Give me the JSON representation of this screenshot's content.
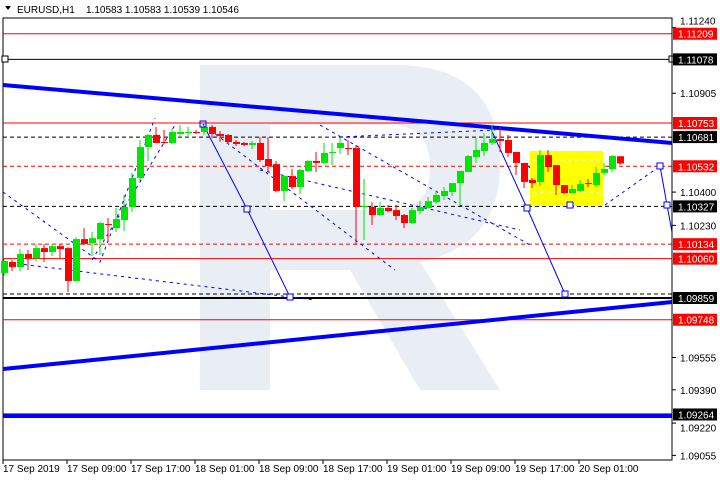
{
  "header": {
    "symbol": "EURUSD,H1",
    "ohlc": "1.10583 1.10583 1.10539 1.10546"
  },
  "chart_data": {
    "type": "candlestick",
    "title": "EURUSD,H1",
    "timeframe": "H1",
    "colors": {
      "bull": "#00e600",
      "bear": "#ff0000",
      "trend": "#0000ff",
      "zone": "#ffff00",
      "background": "#ffffff"
    },
    "ylim": [
      1.0902,
      1.1128
    ],
    "y_ticks": [
      "1.11240",
      "1.10905",
      "1.10400",
      "1.10230",
      "1.09555",
      "1.09390",
      "1.09220",
      "1.09055"
    ],
    "x_ticks": [
      "17 Sep 2019",
      "17 Sep 09:00",
      "17 Sep 17:00",
      "18 Sep 01:00",
      "18 Sep 09:00",
      "18 Sep 17:00",
      "19 Sep 01:00",
      "19 Sep 09:00",
      "19 Sep 17:00",
      "20 Sep 01:00"
    ],
    "candles_ohlc": [
      [
        1.09986,
        1.10058,
        1.09971,
        1.10048
      ],
      [
        1.10043,
        1.10053,
        1.09997,
        1.10017
      ],
      [
        1.10017,
        1.10109,
        1.09997,
        1.10084
      ],
      [
        1.10084,
        1.10104,
        1.10002,
        1.10063
      ],
      [
        1.10063,
        1.10135,
        1.10048,
        1.10114
      ],
      [
        1.10114,
        1.10135,
        1.10043,
        1.10094
      ],
      [
        1.10094,
        1.10135,
        1.10073,
        1.10124
      ],
      [
        1.10124,
        1.10135,
        1.10063,
        1.10109
      ],
      [
        1.10114,
        1.10119,
        1.09889,
        1.09946
      ],
      [
        1.09946,
        1.1017,
        1.09946,
        1.1016
      ],
      [
        1.1016,
        1.10216,
        1.1013,
        1.10135
      ],
      [
        1.1014,
        1.10196,
        1.10073,
        1.10165
      ],
      [
        1.1016,
        1.10247,
        1.10078,
        1.10242
      ],
      [
        1.10237,
        1.10268,
        1.1015,
        1.10232
      ],
      [
        1.10216,
        1.10319,
        1.10196,
        1.10262
      ],
      [
        1.10257,
        1.10385,
        1.10201,
        1.10324
      ],
      [
        1.10324,
        1.10498,
        1.10298,
        1.10472
      ],
      [
        1.10472,
        1.10666,
        1.10457,
        1.1063
      ],
      [
        1.1063,
        1.10697,
        1.10559,
        1.10692
      ],
      [
        1.10692,
        1.10733,
        1.10651,
        1.10651
      ],
      [
        1.10656,
        1.10717,
        1.10646,
        1.10651
      ],
      [
        1.10651,
        1.10722,
        1.10646,
        1.10707
      ],
      [
        1.10697,
        1.10743,
        1.10687,
        1.10707
      ],
      [
        1.10702,
        1.10733,
        1.10687,
        1.10707
      ],
      [
        1.10707,
        1.10717,
        1.10697,
        1.10705
      ],
      [
        1.10707,
        1.10748,
        1.10692,
        1.10733
      ],
      [
        1.10733,
        1.10743,
        1.10676,
        1.10697
      ],
      [
        1.10697,
        1.10712,
        1.10656,
        1.10687
      ],
      [
        1.10692,
        1.10697,
        1.10646,
        1.10656
      ],
      [
        1.10656,
        1.10666,
        1.10635,
        1.10646
      ],
      [
        1.10651,
        1.10656,
        1.10635,
        1.10641
      ],
      [
        1.10641,
        1.10661,
        1.1062,
        1.10651
      ],
      [
        1.10651,
        1.10681,
        1.10554,
        1.10564
      ],
      [
        1.10569,
        1.10681,
        1.10503,
        1.10533
      ],
      [
        1.10543,
        1.10559,
        1.104,
        1.10406
      ],
      [
        1.10406,
        1.10487,
        1.10354,
        1.10482
      ],
      [
        1.10482,
        1.10518,
        1.10416,
        1.10426
      ],
      [
        1.10426,
        1.10518,
        1.1039,
        1.10513
      ],
      [
        1.10508,
        1.10564,
        1.10503,
        1.10559
      ],
      [
        1.10559,
        1.10605,
        1.10503,
        1.10549
      ],
      [
        1.10549,
        1.10651,
        1.10543,
        1.106
      ],
      [
        1.106,
        1.10651,
        1.10538,
        1.10605
      ],
      [
        1.10625,
        1.10681,
        1.10595,
        1.10651
      ],
      [
        1.10625,
        1.10666,
        1.10589,
        1.1062
      ],
      [
        1.10625,
        1.10641,
        1.1013,
        1.10324
      ],
      [
        1.10324,
        1.10467,
        1.10155,
        1.10329
      ],
      [
        1.10324,
        1.10349,
        1.10232,
        1.10283
      ],
      [
        1.10283,
        1.10349,
        1.10278,
        1.10319
      ],
      [
        1.10319,
        1.10334,
        1.10298,
        1.10303
      ],
      [
        1.10308,
        1.10334,
        1.10257,
        1.10278
      ],
      [
        1.10283,
        1.10288,
        1.10216,
        1.10242
      ],
      [
        1.10242,
        1.10319,
        1.10237,
        1.10308
      ],
      [
        1.10303,
        1.10354,
        1.10288,
        1.10324
      ],
      [
        1.10319,
        1.10375,
        1.10314,
        1.10354
      ],
      [
        1.10349,
        1.10406,
        1.10339,
        1.10385
      ],
      [
        1.1038,
        1.10426,
        1.1036,
        1.10406
      ],
      [
        1.104,
        1.10446,
        1.1038,
        1.10446
      ],
      [
        1.10446,
        1.10508,
        1.10334,
        1.10508
      ],
      [
        1.10503,
        1.10589,
        1.10503,
        1.10584
      ],
      [
        1.10579,
        1.10681,
        1.10549,
        1.10615
      ],
      [
        1.1061,
        1.10702,
        1.10584,
        1.10651
      ],
      [
        1.10651,
        1.10743,
        1.10641,
        1.10671
      ],
      [
        1.10671,
        1.10733,
        1.10605,
        1.10661
      ],
      [
        1.10666,
        1.10692,
        1.10579,
        1.106
      ],
      [
        1.10605,
        1.10605,
        1.10487,
        1.10549
      ],
      [
        1.10549,
        1.10549,
        1.10421,
        1.10452
      ],
      [
        1.10462,
        1.10472,
        1.10421,
        1.10446
      ],
      [
        1.10452,
        1.10615,
        1.10431,
        1.10589
      ],
      [
        1.10589,
        1.10615,
        1.10503,
        1.10528
      ],
      [
        1.10538,
        1.10538,
        1.10385,
        1.10436
      ],
      [
        1.10436,
        1.10436,
        1.1039,
        1.10395
      ],
      [
        1.10395,
        1.10436,
        1.10395,
        1.10416
      ],
      [
        1.10406,
        1.10462,
        1.104,
        1.10441
      ],
      [
        1.10446,
        1.10467,
        1.10426,
        1.10444
      ],
      [
        1.10436,
        1.10528,
        1.10426,
        1.10498
      ],
      [
        1.10498,
        1.10549,
        1.10487,
        1.10518
      ],
      [
        1.10518,
        1.10589,
        1.10503,
        1.10584
      ],
      [
        1.10583,
        1.10583,
        1.10539,
        1.10546
      ]
    ],
    "levels": [
      {
        "price": "1.11209",
        "color": "#ff0000",
        "style": "solid"
      },
      {
        "price": "1.11078",
        "color": "#000000",
        "style": "solid"
      },
      {
        "price": "1.10753",
        "color": "#ff0000",
        "style": "solid"
      },
      {
        "price": "1.10681",
        "color": "#000000",
        "style": "dashed"
      },
      {
        "price": "1.10532",
        "color": "#ff0000",
        "style": "dashed"
      },
      {
        "price": "1.10327",
        "color": "#000000",
        "style": "dashed"
      },
      {
        "price": "1.10134",
        "color": "#ff0000",
        "style": "dashed"
      },
      {
        "price": "1.10060",
        "color": "#ff0000",
        "style": "solid"
      },
      {
        "price": "1.09859",
        "color": "#000000",
        "style": "solid"
      },
      {
        "price": "1.09748",
        "color": "#ff0000",
        "style": "solid"
      },
      {
        "price": "1.09264",
        "color": "#000000",
        "style": "solid"
      }
    ]
  }
}
